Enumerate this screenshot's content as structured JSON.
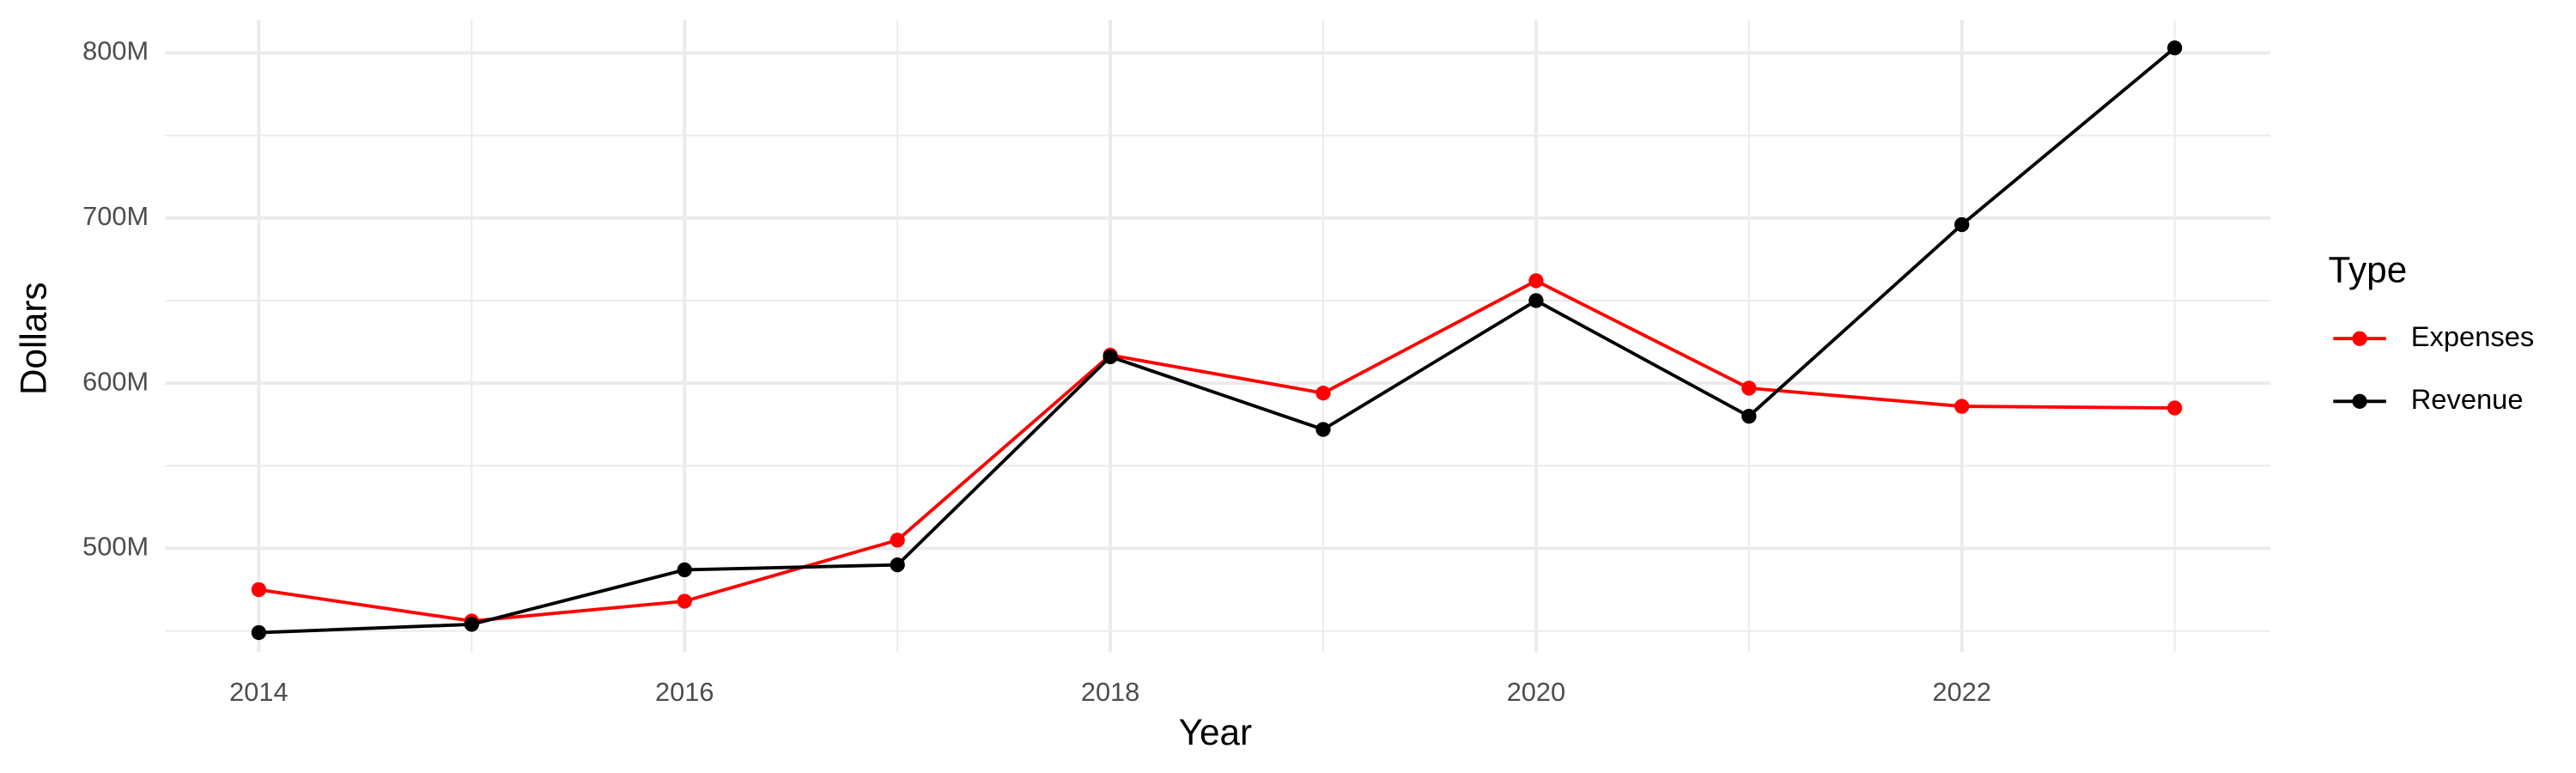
{
  "chart_data": {
    "type": "line",
    "x_label": "Year",
    "y_label": "Dollars",
    "x": [
      2014,
      2015,
      2016,
      2017,
      2018,
      2019,
      2020,
      2021,
      2022,
      2023
    ],
    "series": [
      {
        "name": "Expenses",
        "color": "#ff0000",
        "values": [
          475000000,
          456000000,
          468000000,
          505000000,
          617000000,
          594000000,
          662000000,
          597000000,
          586000000,
          585000000
        ]
      },
      {
        "name": "Revenue",
        "color": "#000000",
        "values": [
          449000000,
          454000000,
          487000000,
          490000000,
          616000000,
          572000000,
          650000000,
          580000000,
          696000000,
          803000000
        ]
      }
    ],
    "xlim": [
      2013.56,
      2023.45
    ],
    "xticks": [
      2014,
      2016,
      2018,
      2020,
      2022
    ],
    "ylim": [
      437000000,
      820000000
    ],
    "yticks": [
      {
        "value": 500000000,
        "label": "500M"
      },
      {
        "value": 600000000,
        "label": "600M"
      },
      {
        "value": 700000000,
        "label": "700M"
      },
      {
        "value": 800000000,
        "label": "800M"
      }
    ],
    "grid": true,
    "legend_title": "Type",
    "legend_position": "right"
  }
}
